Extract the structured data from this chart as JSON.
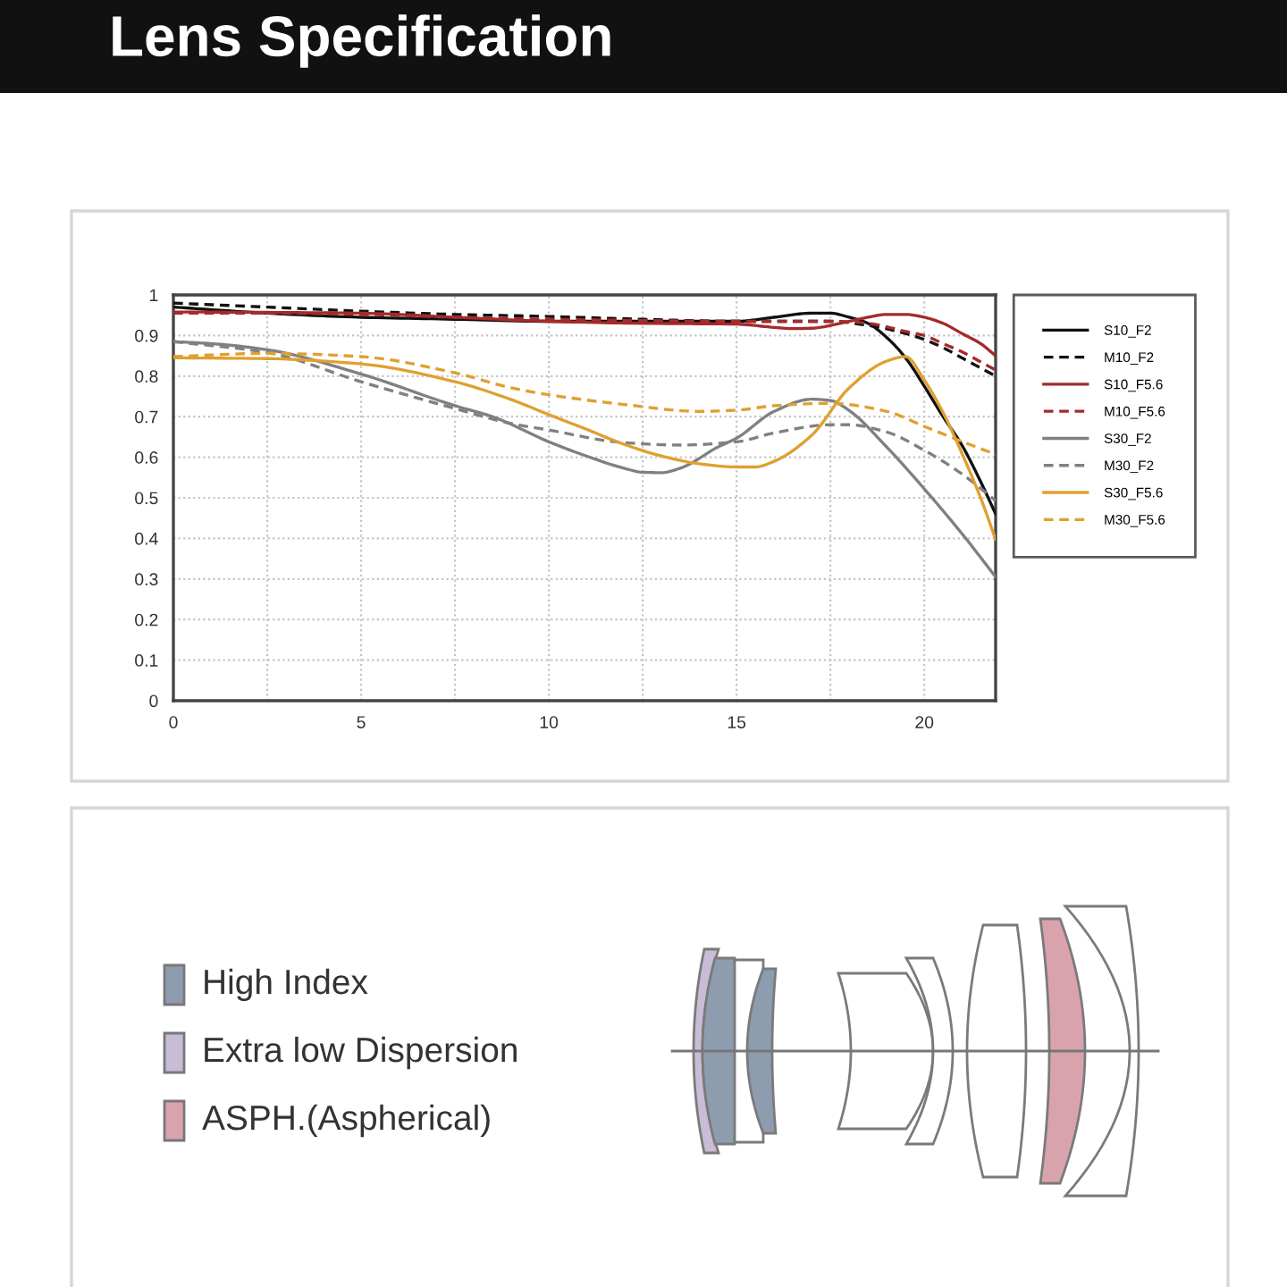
{
  "chart_data": [
    {
      "type": "line",
      "title": "Lens Specification",
      "xlim": [
        0,
        21.9
      ],
      "ylim": [
        0,
        1
      ],
      "xticks": [
        0,
        {
          "value": 2.5,
          "label": null
        },
        5,
        {
          "value": 7.5,
          "label": null
        },
        10,
        {
          "value": 12.5,
          "label": null
        },
        15,
        {
          "value": 17.5,
          "label": null
        },
        20
      ],
      "yticks": [
        0,
        0.1,
        0.2,
        0.3,
        0.4,
        0.5,
        0.6,
        0.7,
        0.8,
        0.9,
        1
      ],
      "grid": true,
      "legend": "right",
      "marker": "none",
      "series": [
        {
          "name": "S10_F2",
          "color": "#111111",
          "line_style": "solid",
          "x": [
            0,
            2.5,
            5,
            7.5,
            10,
            12.5,
            15,
            16,
            17,
            17.5,
            18,
            18.5,
            19,
            19.5,
            20,
            20.5,
            21,
            21.5,
            21.9
          ],
          "values": [
            0.97,
            0.955,
            0.945,
            0.94,
            0.935,
            0.935,
            0.935,
            0.945,
            0.955,
            0.955,
            0.945,
            0.93,
            0.895,
            0.845,
            0.775,
            0.7,
            0.63,
            0.54,
            0.46
          ]
        },
        {
          "name": "M10_F2",
          "color": "#111111",
          "line_style": "dashed",
          "x": [
            0,
            2.5,
            5,
            7.5,
            10,
            12.5,
            15,
            17.5,
            18.5,
            19.5,
            20,
            20.5,
            21,
            21.5,
            21.9
          ],
          "values": [
            0.98,
            0.97,
            0.96,
            0.952,
            0.947,
            0.94,
            0.935,
            0.935,
            0.925,
            0.905,
            0.89,
            0.87,
            0.845,
            0.82,
            0.8
          ]
        },
        {
          "name": "S10_F5.6",
          "color": "#a52a2a",
          "line_style": "solid",
          "x": [
            0,
            2.5,
            5,
            7.5,
            10,
            12.5,
            15,
            16,
            16.5,
            17,
            18,
            18.5,
            19,
            19.5,
            20,
            20.5,
            21,
            21.5,
            21.9
          ],
          "values": [
            0.958,
            0.957,
            0.955,
            0.945,
            0.935,
            0.93,
            0.928,
            0.92,
            0.917,
            0.918,
            0.935,
            0.945,
            0.952,
            0.952,
            0.945,
            0.93,
            0.905,
            0.88,
            0.85
          ]
        },
        {
          "name": "M10_F5.6",
          "color": "#a52a2a",
          "line_style": "dashed",
          "x": [
            0,
            2.5,
            5,
            7.5,
            10,
            12.5,
            15,
            17.5,
            18.5,
            19.5,
            20,
            20.5,
            21,
            21.5,
            21.9
          ],
          "values": [
            0.955,
            0.955,
            0.952,
            0.945,
            0.94,
            0.937,
            0.935,
            0.935,
            0.93,
            0.91,
            0.9,
            0.88,
            0.86,
            0.835,
            0.815
          ]
        },
        {
          "name": "S30_F2",
          "color": "#808080",
          "line_style": "solid",
          "x": [
            0,
            1,
            2.5,
            5,
            7.5,
            8.5,
            10,
            11,
            12,
            12.5,
            13,
            13.5,
            14.5,
            15,
            16,
            17,
            17.5,
            18,
            19,
            20,
            21,
            21.9
          ],
          "values": [
            0.885,
            0.88,
            0.865,
            0.805,
            0.727,
            0.7,
            0.638,
            0.603,
            0.573,
            0.563,
            0.562,
            0.573,
            0.625,
            0.647,
            0.713,
            0.743,
            0.74,
            0.715,
            0.625,
            0.522,
            0.412,
            0.305
          ]
        },
        {
          "name": "M30_F2",
          "color": "#808080",
          "line_style": "dashed",
          "x": [
            0,
            2.5,
            5,
            7.5,
            9,
            10,
            12,
            13.5,
            15,
            16,
            17.5,
            18,
            19,
            20,
            21,
            21.9
          ],
          "values": [
            0.885,
            0.858,
            0.786,
            0.72,
            0.683,
            0.667,
            0.636,
            0.63,
            0.638,
            0.66,
            0.68,
            0.68,
            0.662,
            0.617,
            0.559,
            0.493
          ]
        },
        {
          "name": "S30_F5.6",
          "color": "#dfa030",
          "line_style": "solid",
          "x": [
            0,
            2.5,
            5,
            7.5,
            9,
            10,
            11,
            12,
            13,
            14,
            15,
            15.5,
            16,
            17,
            18,
            19,
            19.5,
            20,
            20.5,
            21,
            21.5,
            21.9
          ],
          "values": [
            0.845,
            0.843,
            0.83,
            0.786,
            0.742,
            0.705,
            0.669,
            0.632,
            0.603,
            0.584,
            0.576,
            0.576,
            0.59,
            0.654,
            0.771,
            0.837,
            0.848,
            0.79,
            0.71,
            0.61,
            0.5,
            0.397
          ]
        },
        {
          "name": "M30_F5.6",
          "color": "#dfa030",
          "line_style": "dashed",
          "x": [
            0,
            2.5,
            5,
            7.5,
            9,
            10,
            12,
            14,
            15,
            16,
            17.5,
            19,
            20,
            21,
            21.9
          ],
          "values": [
            0.848,
            0.856,
            0.848,
            0.808,
            0.771,
            0.754,
            0.73,
            0.713,
            0.716,
            0.727,
            0.733,
            0.713,
            0.676,
            0.639,
            0.607
          ]
        }
      ]
    },
    {
      "type": "other",
      "annotations": [
        "High Index",
        "Extra low Dispersion",
        "ASPH.(Aspherical)"
      ],
      "colors": [
        "#8e9cb0",
        "#c8bcd6",
        "#d9a3ad"
      ]
    }
  ]
}
